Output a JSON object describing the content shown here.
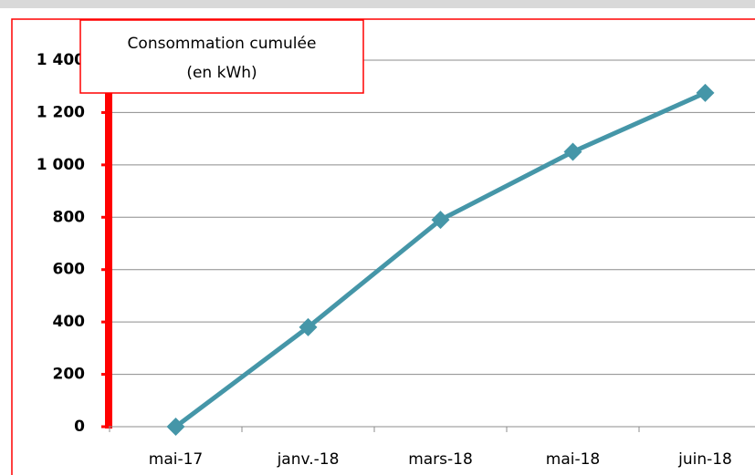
{
  "chart_data": {
    "type": "line",
    "title": "Consommation cumulée",
    "subtitle": "(en kWh)",
    "categories": [
      "mai-17",
      "janv.-18",
      "mars-18",
      "mai-18",
      "juin-18"
    ],
    "values": [
      0,
      380,
      790,
      1050,
      1275
    ],
    "color": "#4596a8",
    "ylim": [
      0,
      1400
    ],
    "yticks": [
      0,
      200,
      400,
      600,
      800,
      {
        "value": 1000,
        "label": "1 000"
      },
      {
        "value": 1200,
        "label": "1 200"
      },
      {
        "value": 1400,
        "label": "1 400"
      }
    ],
    "grid": true
  }
}
